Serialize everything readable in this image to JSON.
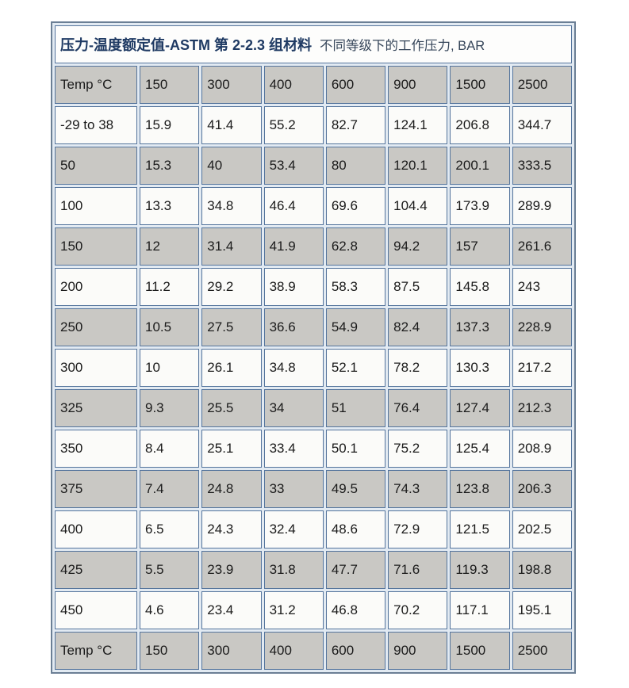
{
  "title": {
    "main": "压力-温度额定值-ASTM 第 2-2.3 组材料",
    "sub": "不同等级下的工作压力, BAR"
  },
  "chart_data": {
    "type": "table",
    "title": "压力-温度额定值-ASTM 第 2-2.3 组材料 不同等级下的工作压力, BAR",
    "columns": [
      "Temp °C",
      "150",
      "300",
      "400",
      "600",
      "900",
      "1500",
      "2500"
    ],
    "rows": [
      [
        "-29 to 38",
        "15.9",
        "41.4",
        "55.2",
        "82.7",
        "124.1",
        "206.8",
        "344.7"
      ],
      [
        "50",
        "15.3",
        "40",
        "53.4",
        "80",
        "120.1",
        "200.1",
        "333.5"
      ],
      [
        "100",
        "13.3",
        "34.8",
        "46.4",
        "69.6",
        "104.4",
        "173.9",
        "289.9"
      ],
      [
        "150",
        "12",
        "31.4",
        "41.9",
        "62.8",
        "94.2",
        "157",
        "261.6"
      ],
      [
        "200",
        "11.2",
        "29.2",
        "38.9",
        "58.3",
        "87.5",
        "145.8",
        "243"
      ],
      [
        "250",
        "10.5",
        "27.5",
        "36.6",
        "54.9",
        "82.4",
        "137.3",
        "228.9"
      ],
      [
        "300",
        "10",
        "26.1",
        "34.8",
        "52.1",
        "78.2",
        "130.3",
        "217.2"
      ],
      [
        "325",
        "9.3",
        "25.5",
        "34",
        "51",
        "76.4",
        "127.4",
        "212.3"
      ],
      [
        "350",
        "8.4",
        "25.1",
        "33.4",
        "50.1",
        "75.2",
        "125.4",
        "208.9"
      ],
      [
        "375",
        "7.4",
        "24.8",
        "33",
        "49.5",
        "74.3",
        "123.8",
        "206.3"
      ],
      [
        "400",
        "6.5",
        "24.3",
        "32.4",
        "48.6",
        "72.9",
        "121.5",
        "202.5"
      ],
      [
        "425",
        "5.5",
        "23.9",
        "31.8",
        "47.7",
        "71.6",
        "119.3",
        "198.8"
      ],
      [
        "450",
        "4.6",
        "23.4",
        "31.2",
        "46.8",
        "70.2",
        "117.1",
        "195.1"
      ]
    ],
    "footer": [
      "Temp °C",
      "150",
      "300",
      "400",
      "600",
      "900",
      "1500",
      "2500"
    ]
  },
  "colors": {
    "cell_border": "#54749c",
    "outer_border": "#6b7f95",
    "spacing_bg": "#e2eaf2",
    "row_gray": "#c9c8c4",
    "row_light": "#fbfbf9",
    "title_text": "#1f3a63",
    "data_text": "#1b1b1b"
  }
}
